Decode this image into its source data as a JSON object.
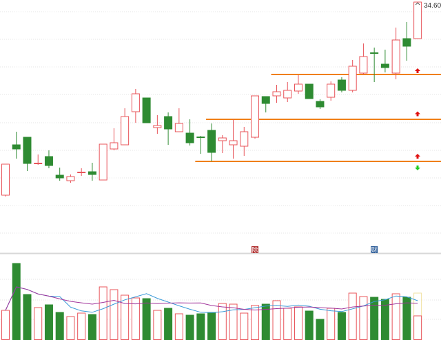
{
  "chart_data": [
    {
      "type": "candlestick",
      "ylim": [
        20.12,
        34.72
      ],
      "grid": true,
      "last_price_label": "34.60",
      "up_color": "#e8545a",
      "down_color": "#2e8b32",
      "candles": [
        {
          "o": 23.4,
          "h": 25.2,
          "l": 23.32,
          "c": 25.2
        },
        {
          "o": 26.32,
          "h": 27.08,
          "l": 25.52,
          "c": 26.08
        },
        {
          "o": 26.76,
          "h": 26.76,
          "l": 24.8,
          "c": 25.24
        },
        {
          "o": 25.22,
          "h": 25.76,
          "l": 25.16,
          "c": 25.26
        },
        {
          "o": 25.64,
          "h": 26.0,
          "l": 24.96,
          "c": 25.12
        },
        {
          "o": 24.56,
          "h": 25.0,
          "l": 24.24,
          "c": 24.4
        },
        {
          "o": 24.24,
          "h": 24.6,
          "l": 24.12,
          "c": 24.48
        },
        {
          "o": 24.7,
          "h": 24.96,
          "l": 24.52,
          "c": 24.74
        },
        {
          "o": 24.76,
          "h": 25.28,
          "l": 24.24,
          "c": 24.6
        },
        {
          "o": 24.28,
          "h": 26.36,
          "l": 24.28,
          "c": 26.36
        },
        {
          "o": 26.08,
          "h": 27.28,
          "l": 26.0,
          "c": 26.44
        },
        {
          "o": 26.32,
          "h": 28.44,
          "l": 26.32,
          "c": 27.96
        },
        {
          "o": 28.24,
          "h": 29.56,
          "l": 27.6,
          "c": 29.28
        },
        {
          "o": 29.04,
          "h": 29.04,
          "l": 27.6,
          "c": 27.6
        },
        {
          "o": 27.32,
          "h": 28.04,
          "l": 26.96,
          "c": 27.44
        },
        {
          "o": 27.96,
          "h": 28.2,
          "l": 26.32,
          "c": 27.24
        },
        {
          "o": 27.08,
          "h": 28.44,
          "l": 27.08,
          "c": 27.56
        },
        {
          "o": 27.0,
          "h": 27.8,
          "l": 26.28,
          "c": 26.44
        },
        {
          "o": 26.78,
          "h": 26.84,
          "l": 25.8,
          "c": 26.74
        },
        {
          "o": 27.16,
          "h": 27.56,
          "l": 25.36,
          "c": 25.88
        },
        {
          "o": 26.56,
          "h": 26.88,
          "l": 25.84,
          "c": 26.72
        },
        {
          "o": 26.32,
          "h": 27.8,
          "l": 25.52,
          "c": 26.56
        },
        {
          "o": 26.24,
          "h": 27.36,
          "l": 25.68,
          "c": 27.08
        },
        {
          "o": 26.76,
          "h": 29.16,
          "l": 26.68,
          "c": 29.16
        },
        {
          "o": 29.12,
          "h": 29.12,
          "l": 28.2,
          "c": 28.72
        },
        {
          "o": 29.16,
          "h": 29.8,
          "l": 28.76,
          "c": 29.4
        },
        {
          "o": 29.04,
          "h": 29.96,
          "l": 28.8,
          "c": 29.48
        },
        {
          "o": 29.44,
          "h": 30.36,
          "l": 29.28,
          "c": 29.84
        },
        {
          "o": 29.84,
          "h": 29.84,
          "l": 29.0,
          "c": 29.0
        },
        {
          "o": 28.84,
          "h": 28.96,
          "l": 28.4,
          "c": 28.52
        },
        {
          "o": 29.08,
          "h": 30.0,
          "l": 28.88,
          "c": 29.84
        },
        {
          "o": 30.08,
          "h": 30.24,
          "l": 29.36,
          "c": 29.48
        },
        {
          "o": 29.48,
          "h": 31.24,
          "l": 29.36,
          "c": 30.88
        },
        {
          "o": 30.48,
          "h": 32.2,
          "l": 30.4,
          "c": 31.44
        },
        {
          "o": 31.66,
          "h": 31.96,
          "l": 29.96,
          "c": 31.62
        },
        {
          "o": 31.0,
          "h": 31.84,
          "l": 30.52,
          "c": 30.8
        },
        {
          "o": 30.48,
          "h": 33.12,
          "l": 30.12,
          "c": 32.4
        },
        {
          "o": 32.48,
          "h": 33.44,
          "l": 31.2,
          "c": 32.04
        },
        {
          "o": 32.48,
          "h": 34.6,
          "l": 32.48,
          "c": 34.6
        }
      ],
      "support_lines": [
        {
          "price": 30.4,
          "from_index": 25,
          "color": "#f07f16"
        },
        {
          "price": 27.8,
          "from_index": 19,
          "color": "#f07f16"
        },
        {
          "price": 25.36,
          "from_index": 18,
          "color": "#f07f16"
        }
      ],
      "signal_arrows": [
        {
          "price": 30.6,
          "direction": "up",
          "color": "#e01010"
        },
        {
          "price": 28.1,
          "direction": "up",
          "color": "#e01010"
        },
        {
          "price": 25.64,
          "direction": "up",
          "color": "#e01010"
        },
        {
          "price": 25.0,
          "direction": "down",
          "color": "#22cc22"
        }
      ],
      "event_markers": [
        {
          "index": 23,
          "label": "除",
          "color": "#b03030",
          "icon": "ex-dividend-marker"
        },
        {
          "index": 34,
          "label": "财",
          "color": "#2f5f9a",
          "icon": "financial-report-marker"
        }
      ]
    },
    {
      "type": "bar",
      "ylim": [
        0,
        123
      ],
      "grid": true,
      "volumes": [
        43,
        111,
        66,
        47,
        51,
        40,
        34,
        39,
        37,
        77,
        73,
        65,
        61,
        60,
        43,
        46,
        38,
        36,
        38,
        40,
        53,
        52,
        39,
        50,
        52,
        57,
        46,
        48,
        42,
        30,
        46,
        40,
        68,
        63,
        62,
        59,
        67,
        62,
        35
      ],
      "projected_last_volume": 68,
      "projected_color": "#f0e0a0",
      "moving_averages": [
        {
          "period": 5,
          "color": "#3a9ad9"
        },
        {
          "period": 10,
          "color": "#a0339a"
        }
      ]
    }
  ]
}
